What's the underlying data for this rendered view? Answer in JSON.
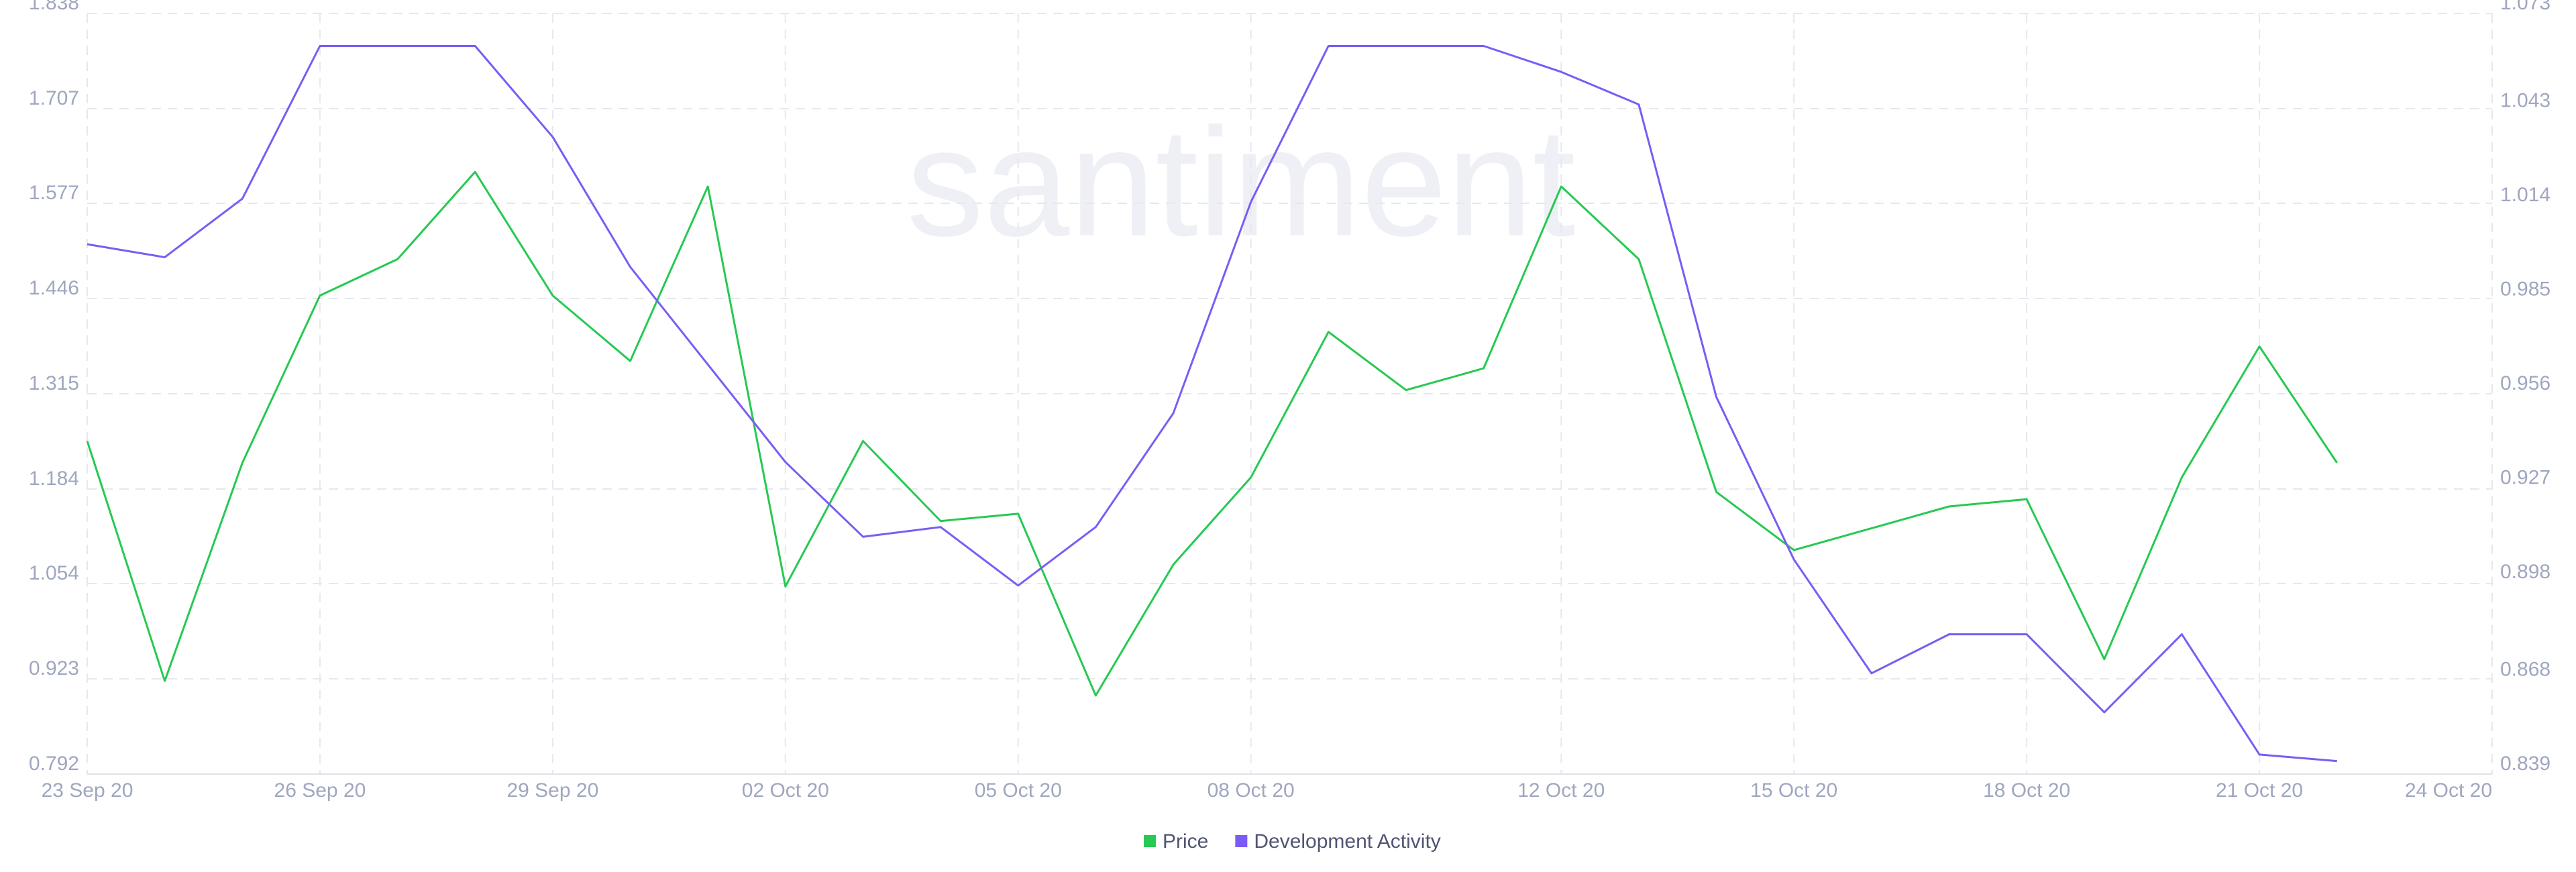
{
  "chart_data": {
    "type": "line",
    "watermark": "santiment",
    "x": [
      "2020-09-23",
      "2020-09-24",
      "2020-09-25",
      "2020-09-26",
      "2020-09-27",
      "2020-09-28",
      "2020-09-29",
      "2020-09-30",
      "2020-10-01",
      "2020-10-02",
      "2020-10-03",
      "2020-10-04",
      "2020-10-05",
      "2020-10-06",
      "2020-10-07",
      "2020-10-08",
      "2020-10-09",
      "2020-10-10",
      "2020-10-11",
      "2020-10-12",
      "2020-10-13",
      "2020-10-14",
      "2020-10-15",
      "2020-10-16",
      "2020-10-17",
      "2020-10-18",
      "2020-10-19",
      "2020-10-20",
      "2020-10-21",
      "2020-10-22"
    ],
    "series": [
      {
        "name": "Price",
        "color": "#26c953",
        "axis": "y",
        "values": [
          1.25,
          0.92,
          1.22,
          1.45,
          1.5,
          1.62,
          1.45,
          1.36,
          1.6,
          1.05,
          1.25,
          1.14,
          1.15,
          0.9,
          1.08,
          1.2,
          1.4,
          1.32,
          1.35,
          1.6,
          1.5,
          1.18,
          1.1,
          1.13,
          1.16,
          1.17,
          0.95,
          1.2,
          1.38,
          1.22
        ]
      },
      {
        "name": "Development Activity",
        "color": "#7a5cf5",
        "axis": "y2",
        "values": [
          1.002,
          0.998,
          1.016,
          1.063,
          1.063,
          1.063,
          1.035,
          0.995,
          0.965,
          0.935,
          0.912,
          0.915,
          0.897,
          0.915,
          0.95,
          1.015,
          1.063,
          1.063,
          1.063,
          1.055,
          1.045,
          0.955,
          0.905,
          0.87,
          0.882,
          0.882,
          0.858,
          0.882,
          0.845,
          0.843
        ]
      }
    ],
    "xlim": [
      "2020-09-23",
      "2020-10-24"
    ],
    "xticks": [
      {
        "value": "2020-09-23",
        "label": "23 Sep 20"
      },
      {
        "value": "2020-09-26",
        "label": "26 Sep 20"
      },
      {
        "value": "2020-09-29",
        "label": "29 Sep 20"
      },
      {
        "value": "2020-10-02",
        "label": "02 Oct 20"
      },
      {
        "value": "2020-10-05",
        "label": "05 Oct 20"
      },
      {
        "value": "2020-10-08",
        "label": "08 Oct 20"
      },
      {
        "value": "2020-10-12",
        "label": "12 Oct 20"
      },
      {
        "value": "2020-10-15",
        "label": "15 Oct 20"
      },
      {
        "value": "2020-10-18",
        "label": "18 Oct 20"
      },
      {
        "value": "2020-10-21",
        "label": "21 Oct 20"
      },
      {
        "value": "2020-10-24",
        "label": "24 Oct 20"
      }
    ],
    "ylim": [
      0.792,
      1.838
    ],
    "yticks": [
      0.792,
      0.923,
      1.054,
      1.184,
      1.315,
      1.446,
      1.577,
      1.707,
      1.838
    ],
    "y2lim": [
      0.839,
      1.073
    ],
    "y2ticks": [
      0.839,
      0.868,
      0.898,
      0.927,
      0.956,
      0.985,
      1.014,
      1.043,
      1.073
    ],
    "grid": true,
    "legend": "bottom"
  }
}
